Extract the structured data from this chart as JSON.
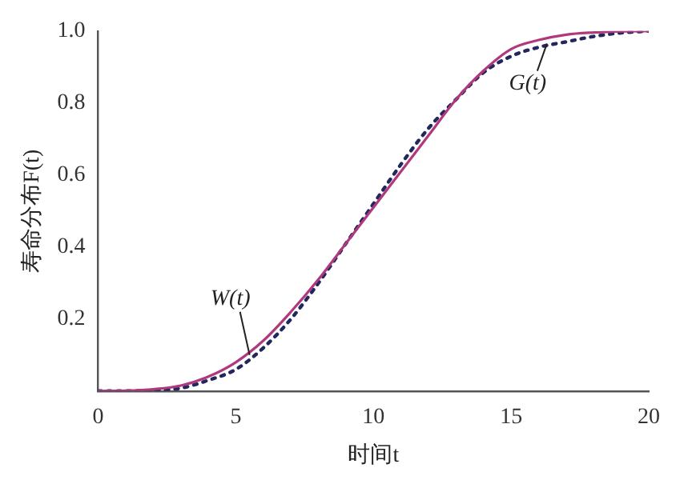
{
  "chart_data": {
    "type": "line",
    "xlabel": "时间t",
    "ylabel": "寿命分布F(t)",
    "x": [
      0,
      1,
      2,
      3,
      4,
      5,
      6,
      7,
      8,
      9,
      10,
      11,
      12,
      13,
      14,
      15,
      16,
      17,
      18,
      19,
      20
    ],
    "series": [
      {
        "color": "#b0397e",
        "line_style": "solid",
        "values": [
          0,
          0.001,
          0.005,
          0.015,
          0.04,
          0.08,
          0.14,
          0.22,
          0.31,
          0.41,
          0.51,
          0.61,
          0.71,
          0.81,
          0.89,
          0.95,
          0.975,
          0.99,
          0.996,
          0.999,
          1.0
        ]
      },
      {
        "color": "#22285e",
        "line_style": "dotted",
        "values": [
          0,
          0,
          0.002,
          0.008,
          0.03,
          0.06,
          0.12,
          0.2,
          0.3,
          0.41,
          0.52,
          0.63,
          0.73,
          0.81,
          0.885,
          0.93,
          0.955,
          0.97,
          0.985,
          0.995,
          1.0
        ]
      }
    ],
    "xlim": [
      0,
      20
    ],
    "xticks": [
      0,
      5,
      10,
      15,
      20
    ],
    "ylim": [
      0,
      1
    ],
    "yticks": [
      0.2,
      0.4,
      0.6,
      0.8,
      {
        "value": 1,
        "label": "1.0"
      }
    ],
    "grid": false,
    "legend": false,
    "marker": "none",
    "annotations": [
      {
        "text": "W(t)",
        "x": 5.5,
        "y": 0.1
      },
      {
        "text": "G(t)",
        "x": 16.3,
        "y": 0.965
      }
    ]
  }
}
